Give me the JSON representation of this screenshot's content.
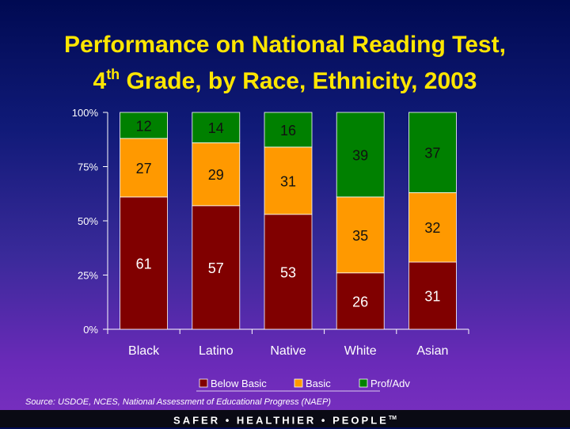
{
  "title": {
    "line1": "Performance on National Reading Test,",
    "line2_pre": "4",
    "line2_sup": "th",
    "line2_post": " Grade, by Race, Ethnicity, 2003"
  },
  "chart_data": {
    "type": "bar",
    "stacked": true,
    "categories": [
      "Black",
      "Latino",
      "Native",
      "White",
      "Asian"
    ],
    "series": [
      {
        "name": "Below Basic",
        "color": "#800000",
        "values": [
          61,
          57,
          53,
          26,
          31
        ]
      },
      {
        "name": "Basic",
        "color": "#ff9900",
        "values": [
          27,
          29,
          31,
          35,
          32
        ]
      },
      {
        "name": "Prof/Adv",
        "color": "#008000",
        "values": [
          12,
          14,
          16,
          39,
          37
        ]
      }
    ],
    "yticks": [
      "0%",
      "25%",
      "50%",
      "75%",
      "100%"
    ],
    "ylim": [
      0,
      100
    ],
    "legend_position": "bottom"
  },
  "source": "Source: USDOE, NCES, National Assessment of Educational Progress (NAEP)",
  "footer": {
    "text": "SAFER • HEALTHIER • PEOPLE",
    "tm": "TM"
  }
}
